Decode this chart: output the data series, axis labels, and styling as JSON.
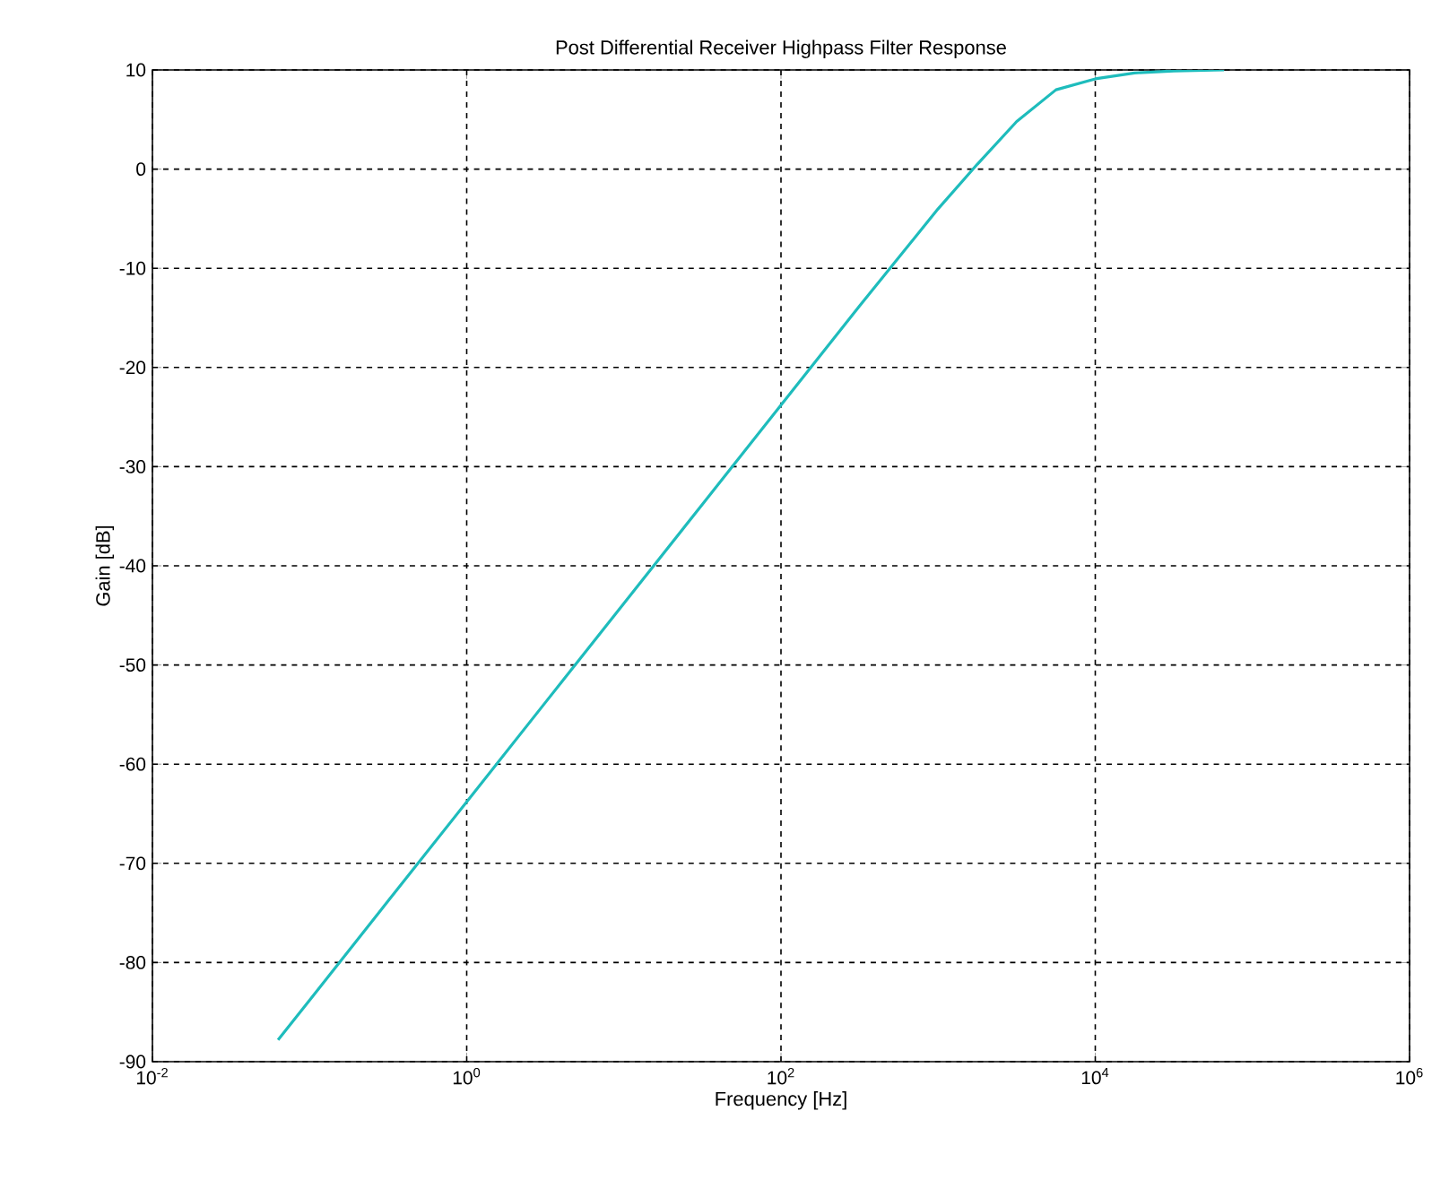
{
  "chart_data": {
    "type": "line",
    "title": "Post Differential Receiver Highpass Filter Response",
    "xlabel": "Frequency [Hz]",
    "ylabel": "Gain [dB]",
    "log": "x",
    "grid": true,
    "xlim": [
      0.01,
      1000000
    ],
    "ylim": [
      -90,
      10
    ],
    "xticks": [
      {
        "value": 0.01,
        "label": "10$^{-2}$"
      },
      {
        "value": 1,
        "label": "10$^{0}$"
      },
      {
        "value": 100,
        "label": "10$^{2}$"
      },
      {
        "value": 10000,
        "label": "10$^{4}$"
      },
      {
        "value": 1000000,
        "label": "10$^{6}$"
      }
    ],
    "yticks": [
      -90,
      -80,
      -70,
      -60,
      -50,
      -40,
      -30,
      -20,
      -10,
      0,
      10
    ],
    "series": [
      {
        "color": "#1ebcbc",
        "x": [
          0.063,
          0.1,
          0.316,
          1,
          3.16,
          10,
          31.6,
          100,
          316,
          1000,
          1778,
          3162,
          5623,
          10000,
          17783,
          31623,
          66000
        ],
        "values": [
          -87.8,
          -83.8,
          -73.8,
          -63.8,
          -53.8,
          -43.8,
          -33.8,
          -23.8,
          -13.8,
          -4.0,
          0.5,
          4.8,
          8.0,
          9.1,
          9.7,
          9.9,
          10
        ]
      }
    ]
  }
}
